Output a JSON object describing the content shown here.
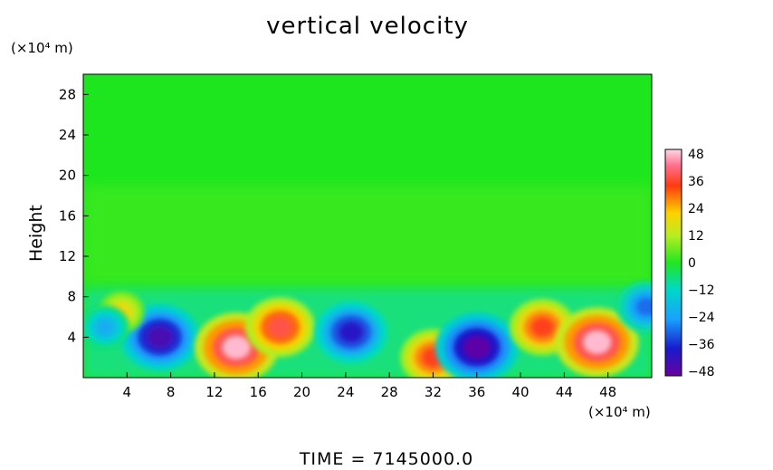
{
  "chart_data": {
    "type": "heatmap",
    "title": "vertical velocity",
    "ylabel": "Height",
    "y_unit": "(×10⁴ m)",
    "x_unit": "(×10⁴ m)",
    "xlim": [
      0,
      52
    ],
    "ylim": [
      0,
      30
    ],
    "x_ticks": [
      4,
      8,
      12,
      16,
      20,
      24,
      28,
      32,
      36,
      40,
      44,
      48
    ],
    "y_ticks": [
      4,
      8,
      12,
      16,
      20,
      24,
      28
    ],
    "colorbar": {
      "range": [
        -50,
        50
      ],
      "ticks": [
        48,
        36,
        24,
        12,
        0,
        -12,
        -24,
        -36,
        -48
      ],
      "tick_labels": [
        "48",
        "36",
        "24",
        "12",
        "0",
        "−12",
        "−24",
        "−36",
        "−48"
      ]
    },
    "features": [
      {
        "x": 7,
        "y": 4,
        "value": -45
      },
      {
        "x": 3.5,
        "y": 6.5,
        "value": 20
      },
      {
        "x": 2,
        "y": 5,
        "value": -22
      },
      {
        "x": 14,
        "y": 3,
        "value": 48
      },
      {
        "x": 18,
        "y": 5,
        "value": 38
      },
      {
        "x": 24.5,
        "y": 4.5,
        "value": -40
      },
      {
        "x": 32,
        "y": 2,
        "value": 35
      },
      {
        "x": 36,
        "y": 3,
        "value": -48
      },
      {
        "x": 42,
        "y": 5,
        "value": 35
      },
      {
        "x": 47,
        "y": 3.5,
        "value": 48
      },
      {
        "x": 51.5,
        "y": 7,
        "value": -30
      }
    ]
  },
  "footer": "TIME  =  7145000.0"
}
